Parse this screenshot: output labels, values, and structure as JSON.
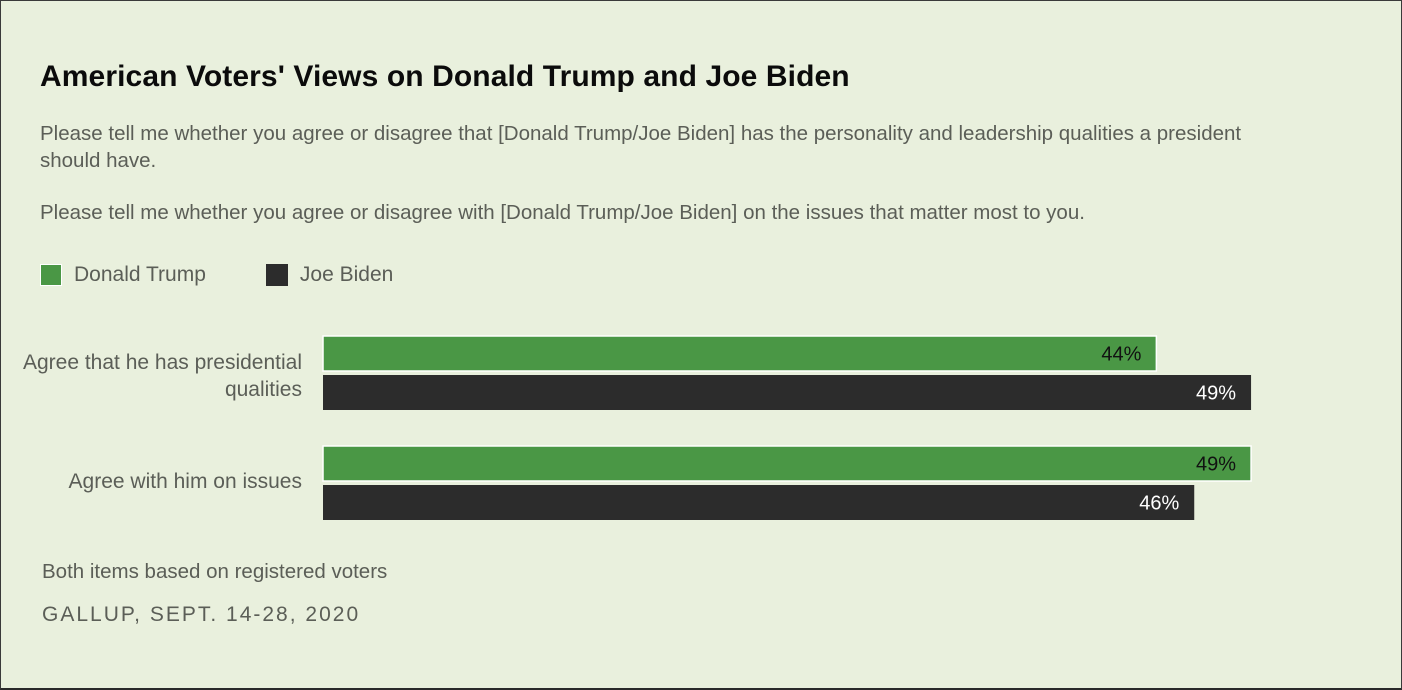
{
  "colors": {
    "background": "#e9f0dd",
    "trump": "#4a9745",
    "biden": "#2c2c2c",
    "muted_text": "#5b5e57"
  },
  "header": {
    "title": "American Voters' Views on Donald Trump and Joe Biden",
    "subtitle_1": "Please tell me whether you agree or disagree that [Donald Trump/Joe Biden] has the personality and leadership qualities a president should have.",
    "subtitle_2": "Please tell me whether you agree or disagree with [Donald Trump/Joe Biden] on the issues that matter most to you."
  },
  "legend": {
    "items": [
      {
        "label": "Donald Trump",
        "color": "#4a9745"
      },
      {
        "label": "Joe Biden",
        "color": "#2c2c2c"
      }
    ]
  },
  "chart_data": {
    "type": "bar",
    "orientation": "horizontal",
    "categories": [
      "Agree that he has presidential qualities",
      "Agree with him on issues"
    ],
    "series": [
      {
        "name": "Donald Trump",
        "values": [
          44,
          49
        ],
        "labels": [
          "44%",
          "49%"
        ]
      },
      {
        "name": "Joe Biden",
        "values": [
          49,
          46
        ],
        "labels": [
          "49%",
          "46%"
        ]
      }
    ],
    "unit": "%",
    "legend_position": "top-left",
    "grid": false
  },
  "footer": {
    "note": "Both items based on registered voters",
    "source": "GALLUP, SEPT. 14-28, 2020"
  }
}
